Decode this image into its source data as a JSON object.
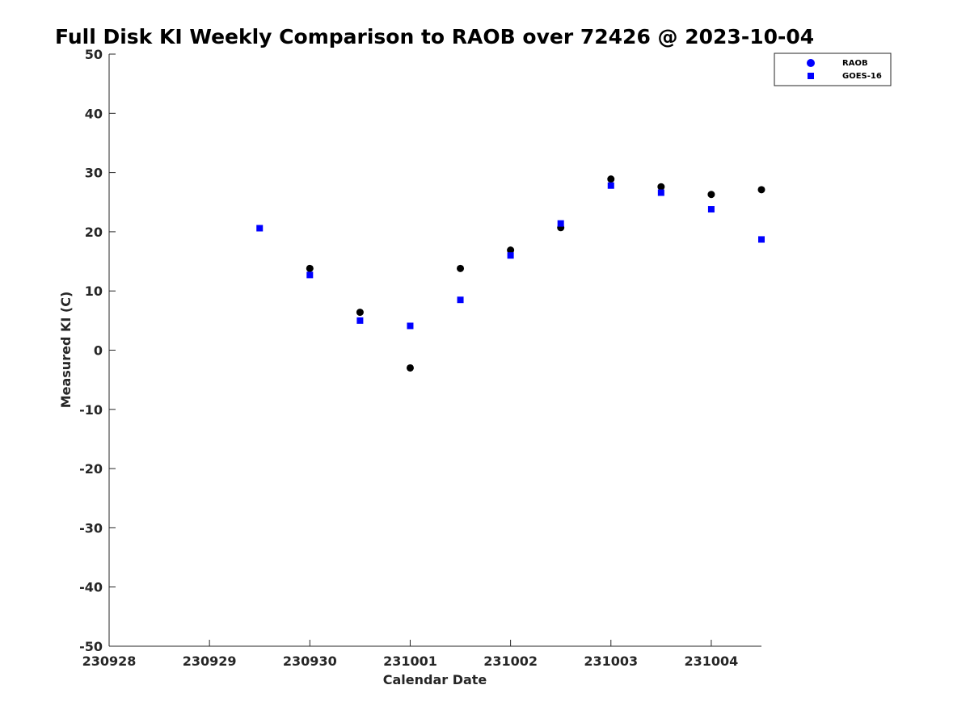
{
  "chart_data": {
    "type": "scatter",
    "title": "Full Disk KI Weekly Comparison to RAOB over 72426 @ 2023-10-04",
    "xlabel": "Calendar Date",
    "ylabel": "Measured KI (C)",
    "x_tick_labels": [
      "230928",
      "230929",
      "230930",
      "231001",
      "231002",
      "231003",
      "231004"
    ],
    "xlim": [
      "230928",
      "231004 12Z"
    ],
    "ylim": [
      -50,
      50
    ],
    "y_ticks": [
      -50,
      -40,
      -30,
      -20,
      -10,
      0,
      10,
      20,
      30,
      40,
      50
    ],
    "grid": false,
    "legend_position": "top-right",
    "x": [
      "230929 12Z",
      "230930 00Z",
      "230930 12Z",
      "231001 00Z",
      "231001 12Z",
      "231002 00Z",
      "231002 12Z",
      "231003 00Z",
      "231003 12Z",
      "231004 00Z",
      "231004 12Z"
    ],
    "series": [
      {
        "name": "RAOB",
        "marker": "circle",
        "color": "#000000",
        "legend_color": "#0000ff",
        "values": [
          null,
          13.8,
          6.4,
          -3.0,
          13.8,
          16.9,
          20.7,
          28.9,
          27.6,
          26.3,
          27.1
        ]
      },
      {
        "name": "GOES-16",
        "marker": "square",
        "color": "#0000ff",
        "values": [
          20.6,
          12.7,
          5.0,
          4.1,
          8.5,
          16.0,
          21.4,
          27.8,
          26.6,
          23.8,
          18.7
        ]
      }
    ]
  }
}
